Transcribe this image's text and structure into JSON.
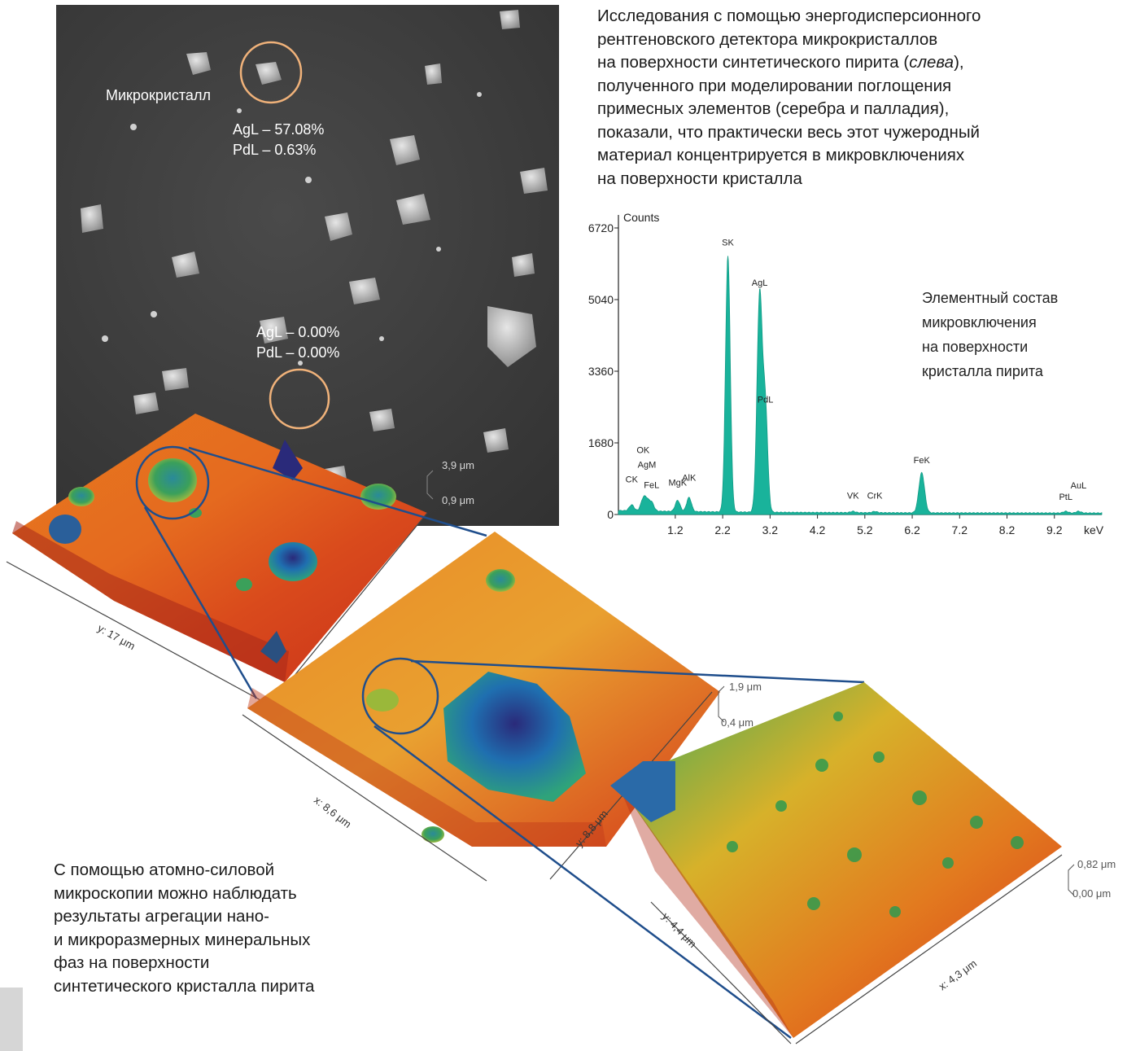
{
  "intro": {
    "line1": "Исследования с помощью энергодисперсионного",
    "line2": "рентгеновского детектора микрокристаллов",
    "line3_before": "на поверхности синтетического пирита (",
    "line3_em": "слева",
    "line3_after": "),",
    "line4": "полученного при моделировании поглощения",
    "line5": "примесных элементов (серебра и палладия),",
    "line6": "показали, что практически весь этот чужеродный",
    "line7": "материал концентрируется в микровключениях",
    "line8": "на поверхности кристалла"
  },
  "sem": {
    "microcrystal_label": "Микрокристалл",
    "point1_ag": "AgL – 57.08%",
    "point1_pd": "PdL – 0.63%",
    "point2_ag": "AgL – 0.00%",
    "point2_pd": "PdL – 0.00%"
  },
  "afm1": {
    "z_top": "3,9 μm",
    "z_bottom": "0,9 μm",
    "y_axis": "y: 17 μm"
  },
  "afm2": {
    "z_top": "1,9 μm",
    "z_bottom": "0,4 μm",
    "x_axis": "x: 8,6 μm",
    "y_axis": "y: 8,8 μm"
  },
  "afm3": {
    "z_top": "0,82 μm",
    "z_bottom": "0,00 μm",
    "x_axis": "x: 4,3 μm",
    "y_axis": "y: 4,4 μm"
  },
  "spectrum_caption": {
    "line1": "Элементный состав",
    "line2": "микровключения",
    "line3": "на поверхности",
    "line4": "кристалла пирита"
  },
  "bottom_text": {
    "line1": "С помощью атомно-силовой",
    "line2": "микроскопии можно наблюдать",
    "line3": "результаты агрегации нано-",
    "line4": "и микроразмерных минеральных",
    "line5": "фаз на поверхности",
    "line6": "синтетического кристалла пирита"
  },
  "colors": {
    "spectrum": "#19b39b",
    "circle": "#f0b27a",
    "zoom_line": "#1f4e8c"
  },
  "chart_data": {
    "type": "line",
    "xlabel": "keV",
    "ylabel": "Counts",
    "xlim": [
      0,
      10.2
    ],
    "ylim": [
      0,
      6720
    ],
    "x_ticks": [
      1.2,
      2.2,
      3.2,
      4.2,
      5.2,
      6.2,
      7.2,
      8.2,
      9.2
    ],
    "y_ticks": [
      0,
      1680,
      3360,
      5040,
      6720
    ],
    "peaks": [
      {
        "label": "CK",
        "x": 0.28,
        "y": 140
      },
      {
        "label": "OK",
        "x": 0.52,
        "y": 260
      },
      {
        "label": "AgM",
        "x": 0.6,
        "y": 220
      },
      {
        "label": "FeL",
        "x": 0.7,
        "y": 200
      },
      {
        "label": "MgK",
        "x": 1.25,
        "y": 260
      },
      {
        "label": "AlK",
        "x": 1.49,
        "y": 330
      },
      {
        "label": "SK",
        "x": 2.31,
        "y": 6000
      },
      {
        "label": "AgL",
        "x": 2.98,
        "y": 5100
      },
      {
        "label": "PdL",
        "x": 3.1,
        "y": 2400
      },
      {
        "label": "VK",
        "x": 4.95,
        "y": 30
      },
      {
        "label": "CrK",
        "x": 5.41,
        "y": 30
      },
      {
        "label": "FeK",
        "x": 6.4,
        "y": 940
      },
      {
        "label": "PtL",
        "x": 9.44,
        "y": 40
      },
      {
        "label": "AuL",
        "x": 9.71,
        "y": 40
      }
    ]
  }
}
